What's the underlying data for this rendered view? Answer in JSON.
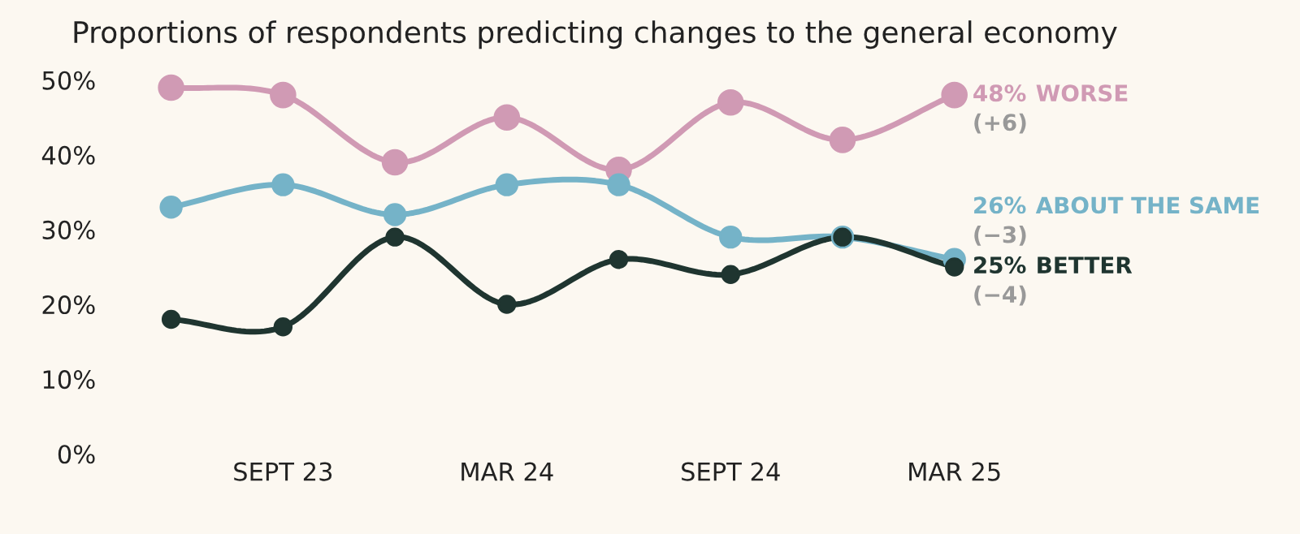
{
  "chart_data": {
    "type": "line",
    "title": "Proportions of respondents predicting changes to the general economy",
    "categories": [
      null,
      "SEPT 23",
      null,
      "MAR 24",
      null,
      "SEPT 24",
      null,
      "MAR 25"
    ],
    "series": [
      {
        "name": "WORSE",
        "color": "#d09ab4",
        "values": [
          49,
          48,
          39,
          45,
          38,
          47,
          42,
          48
        ],
        "value_labels": [
          null,
          null,
          null,
          null,
          null,
          null,
          null,
          "48%"
        ]
      },
      {
        "name": "ABOUT THE SAME",
        "color": "#75b3c8",
        "values": [
          33,
          36,
          32,
          36,
          36,
          29,
          29,
          26
        ],
        "value_labels": [
          null,
          null,
          null,
          null,
          null,
          null,
          null,
          "26%"
        ]
      },
      {
        "name": "BETTER",
        "color": "#1f3530",
        "values": [
          18,
          17,
          29,
          20,
          26,
          24,
          29,
          25
        ],
        "value_labels": [
          null,
          null,
          null,
          null,
          null,
          null,
          null,
          "25%"
        ]
      }
    ],
    "annotations": [
      {
        "text": "(+6)",
        "x": "MAR 25",
        "y": 48
      },
      {
        "text": "(−3)",
        "x": "MAR 25",
        "y": 26
      },
      {
        "text": "(−4)",
        "x": "MAR 25",
        "y": 25
      }
    ],
    "ylim": [
      0,
      50
    ],
    "yticks": [
      {
        "value": 0,
        "label": "0%"
      },
      {
        "value": 10,
        "label": "10%"
      },
      {
        "value": 20,
        "label": "20%"
      },
      {
        "value": 30,
        "label": "30%"
      },
      {
        "value": 40,
        "label": "40%"
      },
      {
        "value": 50,
        "label": "50%"
      }
    ],
    "grid": false,
    "legend": false,
    "marker": "circle",
    "line_style": "solid"
  }
}
